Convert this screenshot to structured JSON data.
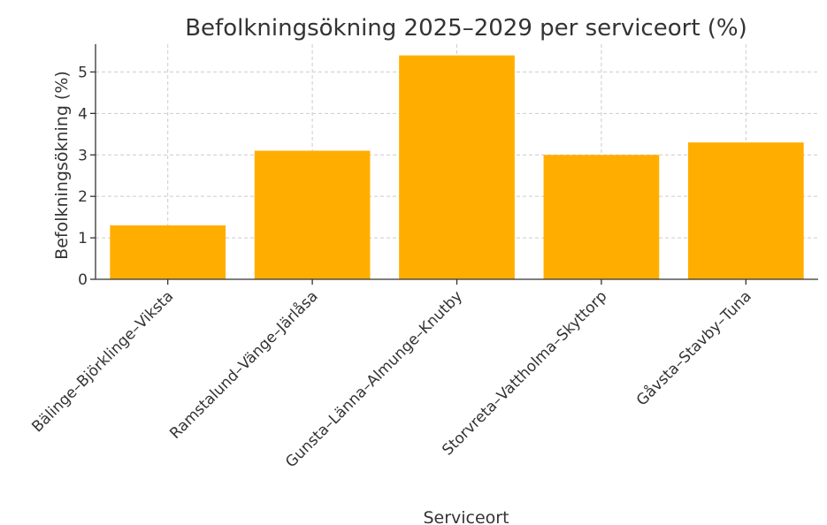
{
  "chart_data": {
    "type": "bar",
    "title": "Befolkningsökning 2025–2029 per serviceort (%)",
    "xlabel": "Serviceort",
    "ylabel": "Befolkningsökning (%)",
    "categories": [
      "Bälinge–Björklinge–Viksta",
      "Ramstalund–Vänge–Järlåsa",
      "Gunsta–Länna–Almunge–Knutby",
      "Storvreta–Vattholma–Skyttorp",
      "Gåvsta–Stavby–Tuna"
    ],
    "values": [
      1.3,
      3.1,
      5.4,
      3.0,
      3.3
    ],
    "yticks": [
      "0",
      "1",
      "2",
      "3",
      "4",
      "5"
    ],
    "ylim": [
      0,
      5.67
    ],
    "grid": true,
    "bar_color": "#FFAE00",
    "legend": "none"
  }
}
